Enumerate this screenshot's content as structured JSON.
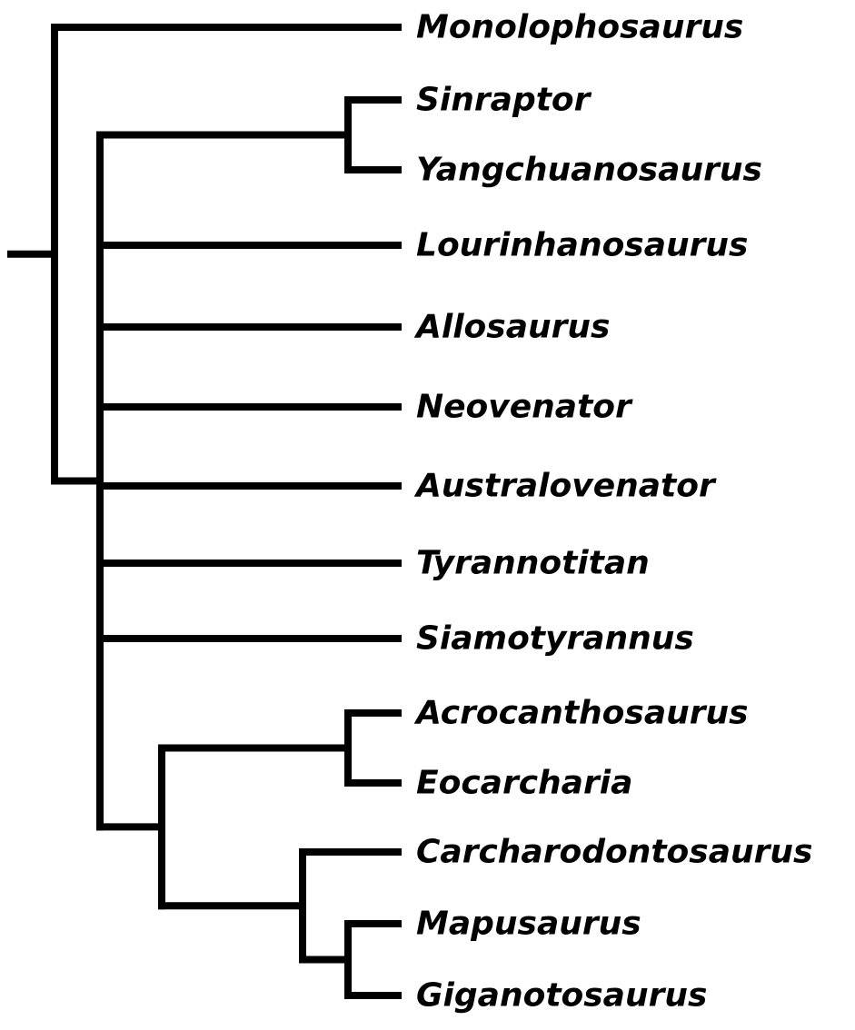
{
  "taxa": [
    "Monolophosaurus",
    "Sinraptor",
    "Yangchuanosaurus",
    "Lourinhanosaurus",
    "Allosaurus",
    "Neovenator",
    "Australovenator",
    "Tyrannotitan",
    "Siamotyrannus",
    "Acrocanthosaurus",
    "Eocarcharia",
    "Carcharodontosaurus",
    "Mapusaurus",
    "Giganotosaurus"
  ],
  "tree": {
    "children": [
      {
        "taxon": 0
      },
      {
        "children": [
          {
            "children": [
              {
                "taxon": 1
              },
              {
                "taxon": 2
              }
            ]
          },
          {
            "taxon": 3
          },
          {
            "taxon": 4
          },
          {
            "taxon": 5
          },
          {
            "taxon": 6
          },
          {
            "taxon": 7
          },
          {
            "taxon": 8
          },
          {
            "children": [
              {
                "children": [
                  {
                    "taxon": 9
                  },
                  {
                    "taxon": 10
                  }
                ]
              },
              {
                "children": [
                  {
                    "taxon": 11
                  },
                  {
                    "children": [
                      {
                        "taxon": 12
                      },
                      {
                        "taxon": 13
                      }
                    ]
                  }
                ]
              }
            ]
          }
        ]
      }
    ]
  }
}
